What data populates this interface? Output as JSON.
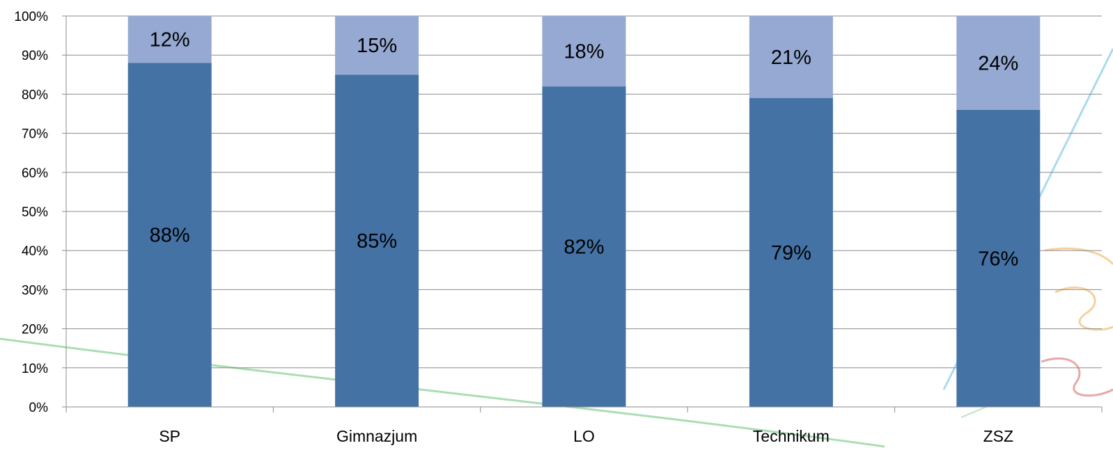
{
  "chart_data": {
    "type": "bar",
    "stacked": true,
    "categories": [
      "SP",
      "Gimnazjum",
      "LO",
      "Technikum",
      "ZSZ"
    ],
    "series": [
      {
        "values": [
          88,
          85,
          82,
          79,
          76
        ],
        "color": "#4472A4"
      },
      {
        "values": [
          12,
          15,
          18,
          21,
          24
        ],
        "color": "#95A9D2"
      }
    ],
    "data_labels": {
      "series0": [
        "88%",
        "85%",
        "82%",
        "79%",
        "76%"
      ],
      "series1": [
        "12%",
        "15%",
        "18%",
        "21%",
        "24%"
      ]
    },
    "yticks": [
      "0%",
      "10%",
      "20%",
      "30%",
      "40%",
      "50%",
      "60%",
      "70%",
      "80%",
      "90%",
      "100%"
    ],
    "ylim": [
      0,
      100
    ],
    "grid": true,
    "title": "",
    "xlabel": "",
    "ylabel": "",
    "legend": "none"
  }
}
